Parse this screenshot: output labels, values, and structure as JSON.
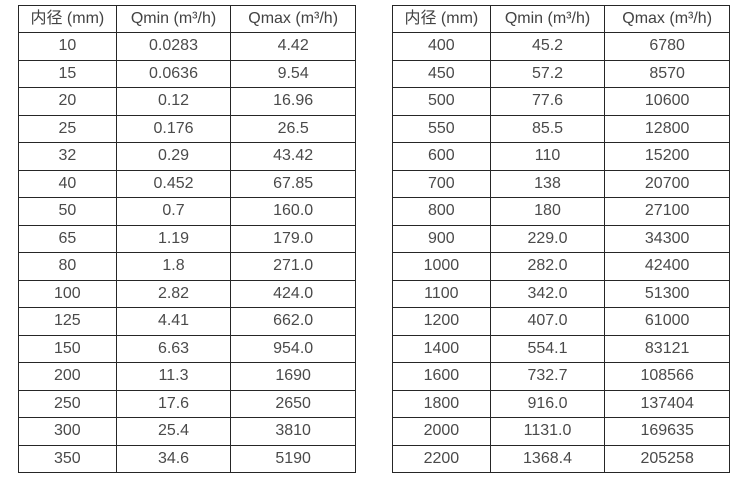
{
  "colors": {
    "border": "#262626",
    "text": "#4a4a4a",
    "background": "#ffffff"
  },
  "tables": [
    {
      "name": "small-diameters",
      "headers": [
        "内径 (mm)",
        "Qmin (m³/h)",
        "Qmax (m³/h)"
      ],
      "rows": [
        [
          "10",
          "0.0283",
          "4.42"
        ],
        [
          "15",
          "0.0636",
          "9.54"
        ],
        [
          "20",
          "0.12",
          "16.96"
        ],
        [
          "25",
          "0.176",
          "26.5"
        ],
        [
          "32",
          "0.29",
          "43.42"
        ],
        [
          "40",
          "0.452",
          "67.85"
        ],
        [
          "50",
          "0.7",
          "160.0"
        ],
        [
          "65",
          "1.19",
          "179.0"
        ],
        [
          "80",
          "1.8",
          "271.0"
        ],
        [
          "100",
          "2.82",
          "424.0"
        ],
        [
          "125",
          "4.41",
          "662.0"
        ],
        [
          "150",
          "6.63",
          "954.0"
        ],
        [
          "200",
          "11.3",
          "1690"
        ],
        [
          "250",
          "17.6",
          "2650"
        ],
        [
          "300",
          "25.4",
          "3810"
        ],
        [
          "350",
          "34.6",
          "5190"
        ]
      ]
    },
    {
      "name": "large-diameters",
      "headers": [
        "内径 (mm)",
        "Qmin (m³/h)",
        "Qmax (m³/h)"
      ],
      "rows": [
        [
          "400",
          "45.2",
          "6780"
        ],
        [
          "450",
          "57.2",
          "8570"
        ],
        [
          "500",
          "77.6",
          "10600"
        ],
        [
          "550",
          "85.5",
          "12800"
        ],
        [
          "600",
          "110",
          "15200"
        ],
        [
          "700",
          "138",
          "20700"
        ],
        [
          "800",
          "180",
          "27100"
        ],
        [
          "900",
          "229.0",
          "34300"
        ],
        [
          "1000",
          "282.0",
          "42400"
        ],
        [
          "1100",
          "342.0",
          "51300"
        ],
        [
          "1200",
          "407.0",
          "61000"
        ],
        [
          "1400",
          "554.1",
          "83121"
        ],
        [
          "1600",
          "732.7",
          "108566"
        ],
        [
          "1800",
          "916.0",
          "137404"
        ],
        [
          "2000",
          "1131.0",
          "169635"
        ],
        [
          "2200",
          "1368.4",
          "205258"
        ]
      ]
    }
  ]
}
